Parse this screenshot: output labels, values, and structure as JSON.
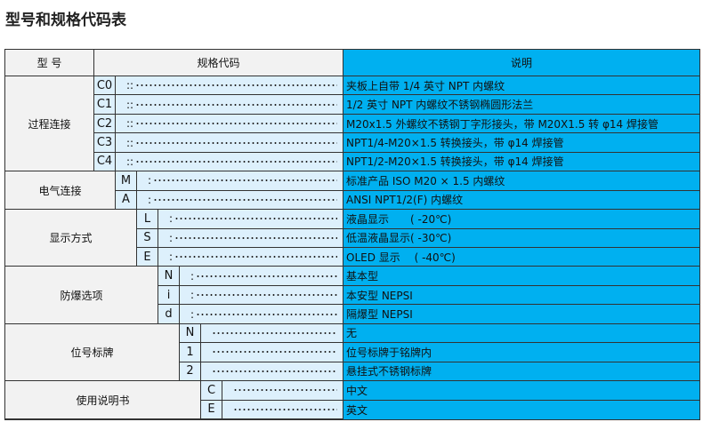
{
  "title": "型号和规格代码表",
  "header": {
    "model": "型 号",
    "code": "规格代码",
    "desc": "说明"
  },
  "colors": {
    "blue": "#00b0f0",
    "light_blue": "#ddf0fc",
    "gray": "#f2f2f2"
  },
  "groups": [
    {
      "label": "过程连接",
      "prefix": "::",
      "rows": [
        {
          "code": "C0",
          "desc": "夹板上自带 1/4 英寸 NPT 内螺纹"
        },
        {
          "code": "C1",
          "desc": "1/2 英寸 NPT 内螺纹不锈钢椭圆形法兰"
        },
        {
          "code": "C2",
          "desc": "M20x1.5 外螺纹不锈钢丁字形接头，带 M20X1.5 转 φ14 焊接管"
        },
        {
          "code": "C3",
          "desc": "NPT1/4-M20×1.5 转换接头，带 φ14 焊接管"
        },
        {
          "code": "C4",
          "desc": "NPT1/2-M20×1.5 转换接头，带 φ14 焊接管"
        }
      ]
    },
    {
      "label": "电气连接",
      "prefix": ":",
      "rows": [
        {
          "code": "M",
          "desc": "标准产品 ISO M20 × 1.5 内螺纹"
        },
        {
          "code": "A",
          "desc": "ANSI NPT1/2(F) 内螺纹"
        }
      ]
    },
    {
      "label": "显示方式",
      "prefix": ":",
      "rows": [
        {
          "code": "L",
          "desc": "液晶显示　　( -20℃)"
        },
        {
          "code": "S",
          "desc": "低温液晶显示( -30℃)"
        },
        {
          "code": "E",
          "desc": "OLED 显示　 ( -40℃)"
        }
      ]
    },
    {
      "label": "防爆选项",
      "prefix": ":",
      "rows": [
        {
          "code": "N",
          "desc": "基本型"
        },
        {
          "code": "i",
          "desc": "本安型  NEPSI"
        },
        {
          "code": "d",
          "desc": "隔爆型  NEPSI"
        }
      ]
    },
    {
      "label": "位号标牌",
      "prefix": "",
      "rows": [
        {
          "code": "N",
          "desc": "无"
        },
        {
          "code": "1",
          "desc": "位号标牌于铭牌内"
        },
        {
          "code": "2",
          "desc": "悬挂式不锈钢标牌"
        }
      ]
    },
    {
      "label": "使用说明书",
      "prefix": "",
      "rows": [
        {
          "code": "C",
          "desc": "中文"
        },
        {
          "code": "E",
          "desc": "英文"
        }
      ]
    }
  ]
}
